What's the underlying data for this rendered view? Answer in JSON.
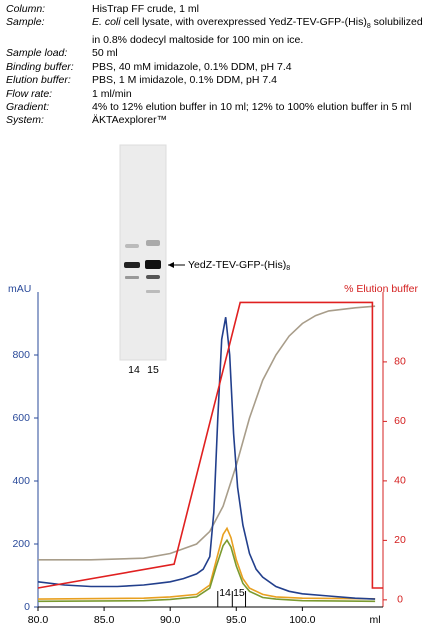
{
  "header": {
    "rows": [
      [
        "Column:",
        "HisTrap FF crude, 1 ml"
      ],
      [
        "Sample:",
        [
          "E. coli",
          " cell lysate, with overexpressed YedZ-TEV-GFP-(His)",
          "8",
          " solubilized in 0.8% dodecyl maltoside for 100 min on ice."
        ]
      ],
      [
        "Sample load:",
        "50 ml"
      ],
      [
        "Binding buffer:",
        "PBS, 40 mM imidazole, 0.1% DDM, pH 7.4"
      ],
      [
        "Elution buffer:",
        "PBS, 1 M imidazole, 0.1% DDM, pH 7.4"
      ],
      [
        "Flow rate:",
        "1 ml/min"
      ],
      [
        "Gradient:",
        "4% to 12% elution buffer in 10 ml; 12% to 100% elution buffer in 5 ml"
      ],
      [
        "System:",
        "ÄKTAexplorer™"
      ]
    ]
  },
  "gel": {
    "lanes": [
      "14",
      "15"
    ],
    "annotation": [
      "YedZ-TEV-GFP-(His)",
      "8"
    ]
  },
  "chart_data": {
    "type": "line",
    "ylabel": "mAU",
    "y2label": "% Elution buffer",
    "xlabel": "ml",
    "xlim": [
      80,
      106.1
    ],
    "ylim": [
      0,
      1000
    ],
    "y2lim": [
      -2.4,
      103.5
    ],
    "xticks": [
      {
        "value": 80,
        "label": "80.0"
      },
      {
        "value": 85,
        "label": "85.0"
      },
      {
        "value": 90,
        "label": "90.0"
      },
      {
        "value": 95,
        "label": "95.0"
      },
      {
        "value": 100,
        "label": "100.0"
      }
    ],
    "yticks": [
      0,
      200,
      400,
      600,
      800
    ],
    "y2ticks": [
      0,
      20,
      40,
      60,
      80
    ],
    "fractions": {
      "labels": [
        "14",
        "15"
      ],
      "bounds": [
        93.6,
        94.7,
        95.7
      ]
    },
    "series": [
      {
        "color": "#a89d8a",
        "x": [
          80,
          84,
          88,
          90,
          91,
          92,
          93,
          94,
          95,
          96,
          97,
          98,
          99,
          100,
          101,
          102,
          104,
          105.5
        ],
        "values": [
          150,
          150,
          155,
          170,
          185,
          200,
          240,
          320,
          450,
          600,
          720,
          800,
          860,
          900,
          925,
          940,
          950,
          955
        ]
      },
      {
        "color": "#e8a020",
        "x": [
          80,
          88,
          90,
          92,
          93,
          93.5,
          94,
          94.3,
          94.6,
          95,
          95.5,
          96,
          97,
          98,
          100,
          105.5
        ],
        "values": [
          25,
          28,
          32,
          40,
          70,
          150,
          230,
          250,
          220,
          150,
          90,
          60,
          40,
          32,
          28,
          26
        ]
      },
      {
        "color": "#7a9a30",
        "x": [
          80,
          88,
          90,
          92,
          93,
          93.5,
          94,
          94.3,
          94.6,
          95,
          95.5,
          96,
          97,
          98,
          100,
          105.5
        ],
        "values": [
          18,
          20,
          24,
          32,
          60,
          130,
          195,
          212,
          190,
          130,
          75,
          50,
          30,
          25,
          20,
          18
        ]
      },
      {
        "color": "#223f8c",
        "x": [
          80,
          82,
          84,
          86,
          88,
          89,
          90,
          91,
          92,
          92.5,
          93,
          93.3,
          93.6,
          93.9,
          94.2,
          94.5,
          94.8,
          95.1,
          95.5,
          96,
          96.5,
          97,
          98,
          99,
          100,
          102,
          104,
          105.5
        ],
        "values": [
          80,
          70,
          65,
          65,
          70,
          75,
          80,
          90,
          105,
          120,
          160,
          300,
          600,
          850,
          920,
          800,
          550,
          380,
          260,
          170,
          120,
          95,
          65,
          50,
          42,
          35,
          28,
          25
        ]
      },
      {
        "color": "#e02020",
        "axis": "y2",
        "x": [
          80,
          90.3,
          95.3,
          105.3,
          105.3,
          106.1
        ],
        "values": [
          4,
          12,
          100,
          100,
          4,
          4
        ]
      }
    ],
    "ycolor": "#2a4a9a",
    "y2color": "#d42020"
  }
}
